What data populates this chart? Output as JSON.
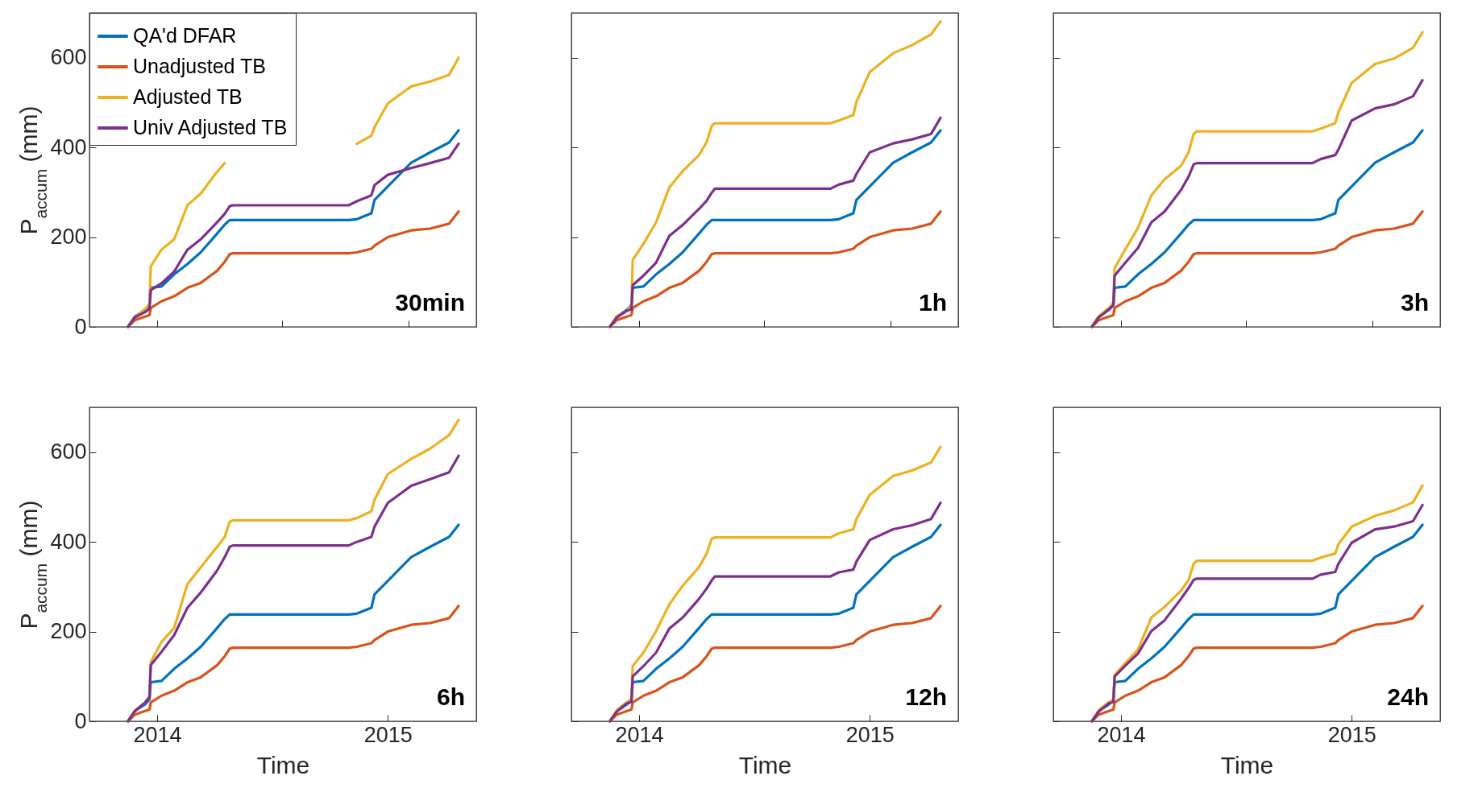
{
  "chart_data": [
    {
      "type": "line",
      "ylabel": "P$_{accum}$ (mm)",
      "annotations": [
        "30min"
      ],
      "legend": "top left",
      "tick_labels": "y",
      "grid": false,
      "line_style": "solid",
      "xlim": [
        "2013-09-16",
        "2015-05-21"
      ],
      "xticks": [
        {
          "value": "2014-01-01",
          "label": null
        },
        {
          "value": "2014-07-18",
          "label": null
        },
        {
          "value": "2015-02-03",
          "label": null
        }
      ],
      "ylim": [
        0,
        700
      ],
      "yticks": [
        0,
        200,
        400,
        600
      ],
      "x": [
        "2013-11-16",
        "2013-11-27",
        "2013-12-13",
        "2013-12-20",
        "2013-12-22",
        "2014-01-08",
        "2014-01-28",
        "2014-02-18",
        "2014-03-11",
        "2014-04-06",
        "2014-04-18",
        "2014-04-26",
        "2014-05-01",
        "2014-10-31",
        "2014-11-13",
        "2014-12-06",
        "2014-12-11",
        "2015-01-01",
        "2015-02-07",
        "2015-03-09",
        "2015-04-08",
        "2015-04-23"
      ],
      "series": [
        {
          "name": "QA'd DFAR",
          "color": "#0072bd",
          "values": [
            0,
            23,
            38,
            49,
            87,
            90,
            117,
            140,
            166,
            208,
            228,
            238,
            238,
            238,
            240,
            253,
            283,
            313,
            366,
            389,
            411,
            438
          ]
        },
        {
          "name": "Unadjusted TB",
          "color": "#d95319",
          "values": [
            0,
            15,
            23,
            26,
            42,
            57,
            68,
            87,
            98,
            125,
            145,
            162,
            164,
            164,
            166,
            174,
            181,
            200,
            215,
            219,
            230,
            257
          ]
        },
        {
          "name": "Adjusted TB",
          "color": "#edb120",
          "values": [
            0,
            21,
            40,
            51,
            135,
            172,
            195,
            271,
            297,
            346,
            365,
            null,
            null,
            null,
            408,
            426,
            445,
            498,
            536,
            547,
            562,
            600
          ]
        },
        {
          "name": "Univ Adjusted TB",
          "color": "#7e2f8e",
          "values": [
            0,
            21,
            33,
            40,
            82,
            97,
            123,
            172,
            195,
            233,
            252,
            269,
            271,
            271,
            280,
            293,
            316,
            339,
            354,
            365,
            377,
            408
          ]
        }
      ]
    },
    {
      "type": "line",
      "annotations": [
        "1h"
      ],
      "tick_labels": false,
      "grid": false,
      "line_style": "solid",
      "xlim": [
        "2013-09-16",
        "2015-05-21"
      ],
      "xticks": [
        {
          "value": "2014-01-01",
          "label": null
        },
        {
          "value": "2014-07-18",
          "label": null
        },
        {
          "value": "2015-02-03",
          "label": null
        }
      ],
      "ylim": [
        0,
        700
      ],
      "yticks": [
        0,
        200,
        400,
        600
      ],
      "x": [
        "2013-11-16",
        "2013-11-27",
        "2013-12-13",
        "2013-12-20",
        "2013-12-22",
        "2014-01-08",
        "2014-01-28",
        "2014-02-18",
        "2014-03-11",
        "2014-04-06",
        "2014-04-18",
        "2014-04-26",
        "2014-05-01",
        "2014-10-31",
        "2014-11-13",
        "2014-12-06",
        "2014-12-11",
        "2015-01-01",
        "2015-02-07",
        "2015-03-09",
        "2015-04-08",
        "2015-04-23"
      ],
      "series": [
        {
          "color": "#0072bd",
          "values": [
            0,
            23,
            38,
            49,
            87,
            90,
            117,
            140,
            166,
            208,
            228,
            238,
            238,
            238,
            240,
            253,
            283,
            313,
            366,
            389,
            411,
            438
          ]
        },
        {
          "color": "#d95319",
          "values": [
            0,
            15,
            23,
            26,
            42,
            57,
            68,
            87,
            98,
            125,
            145,
            162,
            164,
            164,
            166,
            174,
            181,
            200,
            215,
            219,
            230,
            257
          ]
        },
        {
          "color": "#edb120",
          "values": [
            0,
            24,
            36,
            48,
            149,
            185,
            233,
            311,
            347,
            383,
            412,
            448,
            454,
            454,
            460,
            472,
            502,
            568,
            610,
            628,
            652,
            681
          ]
        },
        {
          "color": "#7e2f8e",
          "values": [
            0,
            21,
            36,
            39,
            93,
            114,
            143,
            203,
            227,
            263,
            281,
            299,
            308,
            308,
            317,
            326,
            341,
            389,
            409,
            418,
            430,
            466
          ]
        }
      ]
    },
    {
      "type": "line",
      "annotations": [
        "3h"
      ],
      "tick_labels": false,
      "grid": false,
      "line_style": "solid",
      "xlim": [
        "2013-09-16",
        "2015-05-21"
      ],
      "xticks": [
        {
          "value": "2014-01-01",
          "label": null
        },
        {
          "value": "2014-07-18",
          "label": null
        },
        {
          "value": "2015-02-03",
          "label": null
        }
      ],
      "ylim": [
        0,
        700
      ],
      "yticks": [
        0,
        200,
        400,
        600
      ],
      "x": [
        "2013-11-16",
        "2013-11-27",
        "2013-12-13",
        "2013-12-20",
        "2013-12-22",
        "2014-01-08",
        "2014-01-28",
        "2014-02-18",
        "2014-03-11",
        "2014-04-06",
        "2014-04-18",
        "2014-04-26",
        "2014-05-01",
        "2014-10-31",
        "2014-11-13",
        "2014-12-06",
        "2014-12-11",
        "2015-01-01",
        "2015-02-07",
        "2015-03-09",
        "2015-04-08",
        "2015-04-23"
      ],
      "series": [
        {
          "color": "#0072bd",
          "values": [
            0,
            23,
            38,
            49,
            87,
            90,
            117,
            140,
            166,
            208,
            228,
            238,
            238,
            238,
            240,
            253,
            283,
            313,
            366,
            389,
            411,
            438
          ]
        },
        {
          "color": "#d95319",
          "values": [
            0,
            15,
            23,
            26,
            42,
            57,
            68,
            87,
            98,
            125,
            145,
            162,
            164,
            164,
            166,
            174,
            181,
            200,
            215,
            219,
            230,
            257
          ]
        },
        {
          "color": "#edb120",
          "values": [
            0,
            24,
            42,
            54,
            131,
            173,
            221,
            293,
            329,
            359,
            389,
            430,
            436,
            436,
            442,
            454,
            478,
            544,
            586,
            598,
            622,
            657
          ]
        },
        {
          "color": "#7e2f8e",
          "values": [
            0,
            21,
            39,
            48,
            114,
            143,
            176,
            233,
            257,
            305,
            335,
            362,
            365,
            365,
            374,
            383,
            395,
            460,
            487,
            496,
            514,
            550
          ]
        }
      ]
    },
    {
      "type": "line",
      "ylabel": "P$_{accum}$ (mm)",
      "xlabel": "Time",
      "annotations": [
        "6h"
      ],
      "grid": false,
      "line_style": "solid",
      "xlim": [
        "2013-09-16",
        "2015-05-21"
      ],
      "xticks": [
        {
          "value": "2014-01-01",
          "label": "2014"
        },
        {
          "value": "2015-01-01",
          "label": "2015"
        }
      ],
      "ylim": [
        0,
        700
      ],
      "yticks": [
        0,
        200,
        400,
        600
      ],
      "x": [
        "2013-11-16",
        "2013-11-27",
        "2013-12-13",
        "2013-12-20",
        "2013-12-22",
        "2014-01-08",
        "2014-01-28",
        "2014-02-18",
        "2014-03-11",
        "2014-04-06",
        "2014-04-18",
        "2014-04-26",
        "2014-05-01",
        "2014-10-31",
        "2014-11-13",
        "2014-12-06",
        "2014-12-11",
        "2015-01-01",
        "2015-02-07",
        "2015-03-09",
        "2015-04-08",
        "2015-04-23"
      ],
      "series": [
        {
          "color": "#0072bd",
          "values": [
            0,
            23,
            38,
            49,
            87,
            90,
            117,
            140,
            166,
            208,
            228,
            238,
            238,
            238,
            240,
            253,
            283,
            313,
            366,
            389,
            411,
            438
          ]
        },
        {
          "color": "#d95319",
          "values": [
            0,
            15,
            23,
            26,
            42,
            57,
            68,
            87,
            98,
            125,
            145,
            162,
            164,
            164,
            166,
            174,
            181,
            200,
            215,
            219,
            230,
            257
          ]
        },
        {
          "color": "#edb120",
          "values": [
            0,
            23,
            42,
            57,
            132,
            177,
            208,
            306,
            343,
            389,
            411,
            445,
            448,
            448,
            453,
            468,
            494,
            551,
            585,
            608,
            638,
            672
          ]
        },
        {
          "color": "#7e2f8e",
          "values": [
            0,
            23,
            42,
            53,
            125,
            155,
            192,
            253,
            287,
            336,
            366,
            389,
            392,
            392,
            400,
            411,
            434,
            487,
            525,
            540,
            555,
            592
          ]
        }
      ]
    },
    {
      "type": "line",
      "xlabel": "Time",
      "annotations": [
        "12h"
      ],
      "tick_labels": "x",
      "grid": false,
      "line_style": "solid",
      "xlim": [
        "2013-09-16",
        "2015-05-21"
      ],
      "xticks": [
        {
          "value": "2014-01-01",
          "label": "2014"
        },
        {
          "value": "2015-01-01",
          "label": "2015"
        }
      ],
      "ylim": [
        0,
        700
      ],
      "yticks": [
        0,
        200,
        400,
        600
      ],
      "x": [
        "2013-11-16",
        "2013-11-27",
        "2013-12-13",
        "2013-12-20",
        "2013-12-22",
        "2014-01-08",
        "2014-01-28",
        "2014-02-18",
        "2014-03-11",
        "2014-04-06",
        "2014-04-18",
        "2014-04-26",
        "2014-05-01",
        "2014-10-31",
        "2014-11-13",
        "2014-12-06",
        "2014-12-11",
        "2015-01-01",
        "2015-02-07",
        "2015-03-09",
        "2015-04-08",
        "2015-04-23"
      ],
      "series": [
        {
          "color": "#0072bd",
          "values": [
            0,
            23,
            38,
            49,
            87,
            90,
            117,
            140,
            166,
            208,
            228,
            238,
            238,
            238,
            240,
            253,
            283,
            313,
            366,
            389,
            411,
            438
          ]
        },
        {
          "color": "#d95319",
          "values": [
            0,
            15,
            23,
            26,
            42,
            57,
            68,
            87,
            98,
            125,
            145,
            162,
            164,
            164,
            166,
            174,
            181,
            200,
            215,
            219,
            230,
            257
          ]
        },
        {
          "color": "#edb120",
          "values": [
            0,
            25,
            43,
            49,
            123,
            153,
            201,
            261,
            302,
            344,
            374,
            407,
            410,
            410,
            419,
            428,
            451,
            505,
            547,
            559,
            577,
            612
          ]
        },
        {
          "color": "#7e2f8e",
          "values": [
            0,
            22,
            40,
            43,
            100,
            123,
            153,
            207,
            231,
            273,
            296,
            314,
            323,
            323,
            332,
            338,
            356,
            404,
            428,
            437,
            451,
            487
          ]
        }
      ]
    },
    {
      "type": "line",
      "xlabel": "Time",
      "annotations": [
        "24h"
      ],
      "tick_labels": "x",
      "grid": false,
      "line_style": "solid",
      "xlim": [
        "2013-09-16",
        "2015-05-21"
      ],
      "xticks": [
        {
          "value": "2014-01-01",
          "label": "2014"
        },
        {
          "value": "2015-01-01",
          "label": "2015"
        }
      ],
      "ylim": [
        0,
        700
      ],
      "yticks": [
        0,
        200,
        400,
        600
      ],
      "x": [
        "2013-11-16",
        "2013-11-27",
        "2013-12-13",
        "2013-12-20",
        "2013-12-22",
        "2014-01-08",
        "2014-01-28",
        "2014-02-18",
        "2014-03-11",
        "2014-04-06",
        "2014-04-18",
        "2014-04-26",
        "2014-05-01",
        "2014-10-31",
        "2014-11-13",
        "2014-12-06",
        "2014-12-11",
        "2015-01-01",
        "2015-02-07",
        "2015-03-09",
        "2015-04-08",
        "2015-04-23"
      ],
      "series": [
        {
          "color": "#0072bd",
          "values": [
            0,
            23,
            38,
            49,
            87,
            90,
            117,
            140,
            166,
            208,
            228,
            238,
            238,
            238,
            240,
            253,
            283,
            313,
            366,
            389,
            411,
            438
          ]
        },
        {
          "color": "#d95319",
          "values": [
            0,
            15,
            23,
            26,
            42,
            57,
            68,
            87,
            98,
            125,
            145,
            162,
            164,
            164,
            166,
            174,
            181,
            200,
            215,
            219,
            230,
            257
          ]
        },
        {
          "color": "#edb120",
          "values": [
            0,
            25,
            43,
            46,
            103,
            130,
            160,
            231,
            255,
            291,
            315,
            351,
            358,
            358,
            365,
            374,
            395,
            434,
            458,
            470,
            488,
            526
          ]
        },
        {
          "color": "#7e2f8e",
          "values": [
            0,
            22,
            40,
            43,
            100,
            124,
            151,
            201,
            225,
            273,
            297,
            315,
            318,
            318,
            327,
            333,
            351,
            398,
            428,
            434,
            446,
            482
          ]
        }
      ]
    }
  ]
}
